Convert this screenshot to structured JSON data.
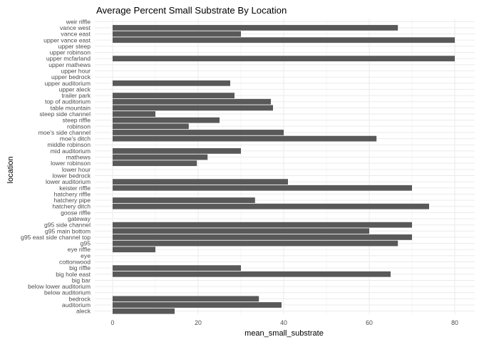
{
  "chart_data": {
    "type": "bar",
    "orientation": "horizontal",
    "title": "Average Percent Small Substrate By Location",
    "xlabel": "mean_small_substrate",
    "ylabel": "location",
    "xlim": [
      0,
      82
    ],
    "x_ticks": [
      0,
      20,
      40,
      60,
      80
    ],
    "grid": true,
    "bar_color": "#595959",
    "grid_color": "#ebebeb",
    "categories": [
      "aleck",
      "auditorium",
      "bedrock",
      "below auditorium",
      "below lower auditorium",
      "big bar",
      "big hole east",
      "big riffle",
      "cottonwood",
      "eye",
      "eye riffle",
      "g95",
      "g95 east side channel top",
      "g95 main bottom",
      "g95 side channel",
      "gateway",
      "goose riffle",
      "hatchery ditch",
      "hatchery pipe",
      "hatchery riffle",
      "keister riffle",
      "lower auditorium",
      "lower bedrock",
      "lower hour",
      "lower robinson",
      "mathews",
      "mid auditorium",
      "middle robinson",
      "moe's ditch",
      "moe's side channel",
      "robinson",
      "steep riffle",
      "steep side channel",
      "table mountain",
      "top of auditorium",
      "trailer park",
      "upper aleck",
      "upper auditorium",
      "upper bedrock",
      "upper hour",
      "upper mathews",
      "upper mcfarland",
      "upper robinson",
      "upper steep",
      "upper vance east",
      "vance east",
      "vance west",
      "weir riffle"
    ],
    "values": [
      14.5,
      39.5,
      34.2,
      0,
      0,
      0,
      65.0,
      30.0,
      0,
      0,
      10.0,
      66.7,
      70.0,
      60.0,
      70.0,
      0,
      0,
      74.0,
      33.3,
      0,
      70.0,
      41.0,
      0,
      0,
      19.7,
      22.2,
      30.0,
      0,
      61.7,
      40.0,
      17.8,
      25.0,
      10.0,
      37.5,
      37.0,
      28.5,
      0,
      27.5,
      0,
      0,
      0,
      80.0,
      0,
      0,
      80.0,
      30.0,
      66.7,
      0
    ]
  }
}
